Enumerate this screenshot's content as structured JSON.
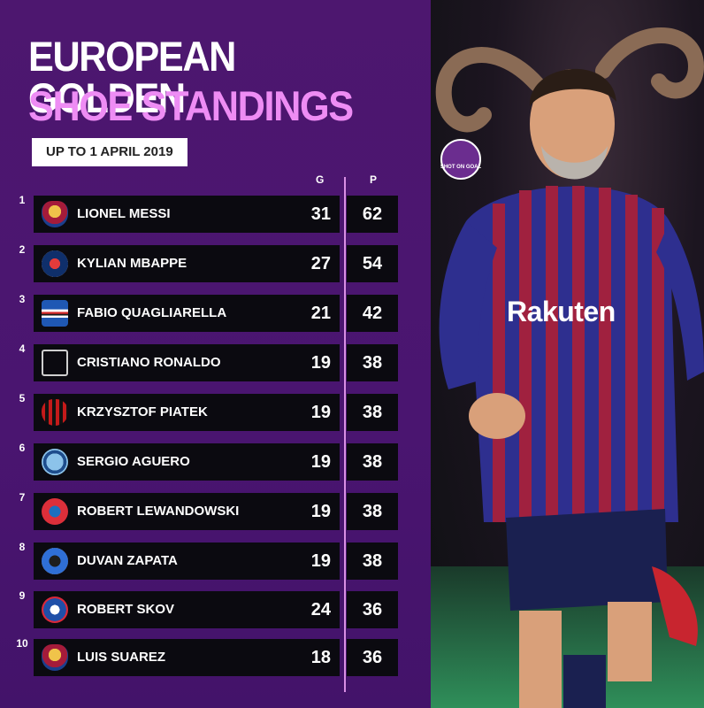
{
  "title_line1": "EUROPEAN GOLDEN",
  "title_line2": "SHOE STANDINGS",
  "date_label": "UP TO 1 APRIL 2019",
  "columns": {
    "goals": "G",
    "points": "P"
  },
  "rows": [
    {
      "rank": "1",
      "name": "LIONEL MESSI",
      "goals": "31",
      "points": "62",
      "crest": "barcelona-crest-icon"
    },
    {
      "rank": "2",
      "name": "KYLIAN MBAPPE",
      "goals": "27",
      "points": "54",
      "crest": "psg-crest-icon"
    },
    {
      "rank": "3",
      "name": "FABIO QUAGLIARELLA",
      "goals": "21",
      "points": "42",
      "crest": "sampdoria-crest-icon"
    },
    {
      "rank": "4",
      "name": "CRISTIANO RONALDO",
      "goals": "19",
      "points": "38",
      "crest": "juventus-crest-icon"
    },
    {
      "rank": "5",
      "name": "KRZYSZTOF PIATEK",
      "goals": "19",
      "points": "38",
      "crest": "ac-milan-crest-icon"
    },
    {
      "rank": "6",
      "name": "SERGIO AGUERO",
      "goals": "19",
      "points": "38",
      "crest": "man-city-crest-icon"
    },
    {
      "rank": "7",
      "name": "ROBERT LEWANDOWSKI",
      "goals": "19",
      "points": "38",
      "crest": "bayern-crest-icon"
    },
    {
      "rank": "8",
      "name": "DUVAN ZAPATA",
      "goals": "19",
      "points": "38",
      "crest": "atalanta-crest-icon"
    },
    {
      "rank": "9",
      "name": "ROBERT SKOV",
      "goals": "24",
      "points": "36",
      "crest": "fc-copenhagen-crest-icon"
    },
    {
      "rank": "10",
      "name": "LUIS SUAREZ",
      "goals": "18",
      "points": "36",
      "crest": "barcelona-crest-icon"
    }
  ],
  "logo_text": "SHOT ON GOAL",
  "sponsor_text": "Rakuten",
  "colors": {
    "background": "#4a1670",
    "title_accent": "#ee8cf4",
    "row_fill": "#0b0a10",
    "divider": "#d98fe4"
  }
}
